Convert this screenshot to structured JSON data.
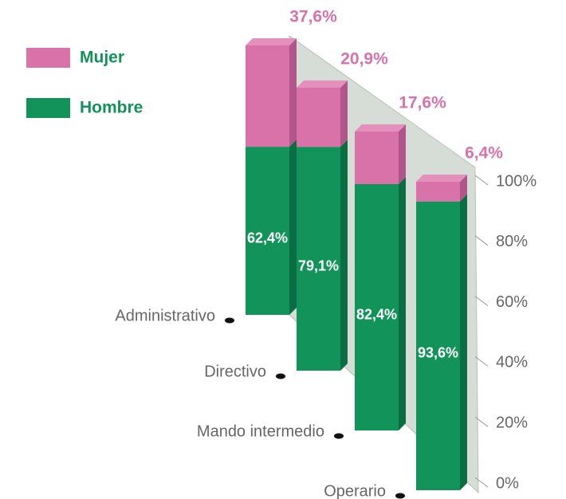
{
  "chart_data": {
    "type": "bar3d_stacked",
    "categories": [
      "Administrativo",
      "Directivo",
      "Mando intermedio",
      "Operario"
    ],
    "series": [
      {
        "name": "Hombre",
        "color": "#12935a",
        "values": [
          62.4,
          79.1,
          82.4,
          93.6
        ],
        "value_labels": [
          "62,4%",
          "79,1%",
          "82,4%",
          "93,6%"
        ]
      },
      {
        "name": "Mujer",
        "color": "#d872a8",
        "values": [
          37.6,
          20.9,
          17.6,
          6.4
        ],
        "value_labels": [
          "37,6%",
          "20,9%",
          "17,6%",
          "6,4%"
        ]
      }
    ],
    "ylim": [
      0,
      100
    ],
    "yticks": [
      {
        "value": 0,
        "label": "0%"
      },
      {
        "value": 20,
        "label": "20%"
      },
      {
        "value": 40,
        "label": "40%"
      },
      {
        "value": 60,
        "label": "60%"
      },
      {
        "value": 80,
        "label": "80%"
      },
      {
        "value": 100,
        "label": "100%"
      }
    ],
    "legend": "top-left"
  }
}
